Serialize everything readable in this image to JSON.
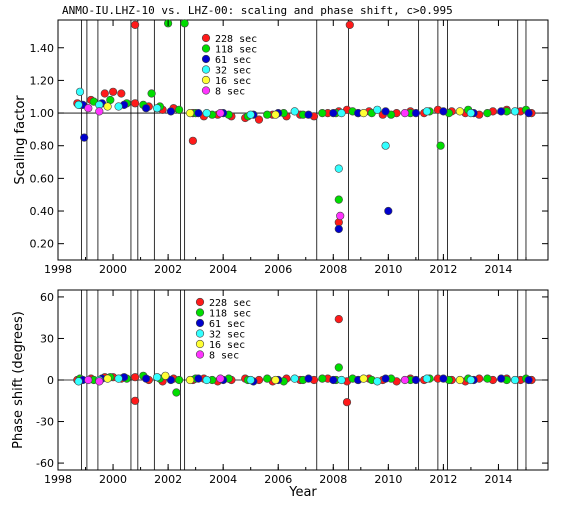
{
  "title": "ANMO-IU.LHZ-10 vs. LHZ-00: scaling and phase shift, c>0.995",
  "xlabel": "Year",
  "x_ticks": [
    "1998",
    "2000",
    "2002",
    "2004",
    "2006",
    "2008",
    "2010",
    "2012",
    "2014"
  ],
  "events": [
    1998.85,
    1999.05,
    1999.45,
    2000.65,
    2000.9,
    2001.5,
    2002.45,
    2002.6,
    2007.4,
    2008.55,
    2011.1,
    2011.8,
    2012.15,
    2014.7,
    2015.0
  ],
  "legend": [
    {
      "label": "228 sec",
      "color": "#ff1a1a"
    },
    {
      "label": "118 sec",
      "color": "#00dd00"
    },
    {
      "label": "61 sec",
      "color": "#0000cc"
    },
    {
      "label": "32 sec",
      "color": "#33ffff"
    },
    {
      "label": "16 sec",
      "color": "#ffff33"
    },
    {
      "label": "8 sec",
      "color": "#ff33ff"
    }
  ],
  "chart_data": [
    {
      "type": "scatter",
      "ylabel": "Scaling factor",
      "xlim": [
        1998,
        2015.8
      ],
      "ylim": [
        0.1,
        1.57
      ],
      "y_ticks": [
        "0.20",
        "0.40",
        "0.60",
        "0.80",
        "1.00",
        "1.20",
        "1.40"
      ],
      "y_tick_values": [
        0.2,
        0.4,
        0.6,
        0.8,
        1.0,
        1.2,
        1.4
      ],
      "baseline": 1.0,
      "series": [
        {
          "name": "228 sec",
          "color": "#ff1a1a",
          "x": [
            1998.7,
            1999.2,
            1999.7,
            2000.0,
            2000.3,
            2000.8,
            2001.3,
            2001.8,
            2002.2,
            2002.9,
            2003.3,
            2003.8,
            2004.3,
            2004.8,
            2005.3,
            2005.8,
            2006.3,
            2006.8,
            2007.3,
            2007.8,
            2008.2,
            2008.5,
            2008.9,
            2009.3,
            2009.8,
            2010.3,
            2010.8,
            2011.3,
            2011.8,
            2012.3,
            2012.8,
            2013.3,
            2013.8,
            2014.3,
            2014.8,
            2015.2,
            2000.8,
            2002.9,
            2008.6,
            2008.2
          ],
          "y": [
            1.06,
            1.08,
            1.12,
            1.13,
            1.12,
            1.06,
            1.04,
            1.02,
            1.03,
            1.0,
            0.98,
            0.99,
            0.98,
            0.97,
            0.96,
            0.99,
            0.98,
            0.99,
            0.98,
            1.0,
            1.01,
            1.02,
            1.0,
            1.01,
            0.99,
            1.0,
            1.01,
            1.0,
            1.02,
            1.01,
            1.0,
            0.99,
            1.01,
            1.02,
            1.01,
            1.0,
            1.54,
            0.83,
            1.54,
            0.33
          ]
        },
        {
          "name": "118 sec",
          "color": "#00dd00",
          "x": [
            1998.8,
            1999.3,
            1999.9,
            2000.5,
            2001.1,
            2001.7,
            2002.4,
            2003.0,
            2003.6,
            2004.2,
            2004.9,
            2005.6,
            2006.2,
            2006.9,
            2007.6,
            2008.1,
            2008.7,
            2009.4,
            2010.1,
            2010.8,
            2011.5,
            2012.2,
            2012.9,
            2013.6,
            2014.3,
            2015.0,
            2002.0,
            2002.6,
            2001.4,
            2008.2,
            2011.9
          ],
          "y": [
            1.05,
            1.07,
            1.08,
            1.06,
            1.05,
            1.04,
            1.02,
            1.0,
            0.99,
            0.99,
            0.98,
            0.99,
            1.0,
            0.99,
            1.0,
            1.0,
            1.01,
            1.0,
            0.99,
            1.0,
            1.01,
            1.0,
            1.02,
            1.0,
            1.01,
            1.02,
            1.55,
            1.55,
            1.12,
            0.47,
            0.8
          ]
        },
        {
          "name": "61 sec",
          "color": "#0000cc",
          "x": [
            1998.9,
            1999.6,
            2000.4,
            2001.2,
            2002.1,
            2003.1,
            2004.0,
            2005.1,
            2006.0,
            2007.1,
            2008.0,
            2008.9,
            2009.9,
            2011.0,
            2012.0,
            2013.1,
            2014.1,
            2015.1,
            1998.95,
            2008.2,
            2010.0
          ],
          "y": [
            1.05,
            1.06,
            1.05,
            1.03,
            1.01,
            1.0,
            1.0,
            0.99,
            1.0,
            0.99,
            1.0,
            1.0,
            1.01,
            1.0,
            1.01,
            1.0,
            1.01,
            1.0,
            0.85,
            0.29,
            0.4
          ]
        },
        {
          "name": "32 sec",
          "color": "#33ffff",
          "x": [
            1998.75,
            1999.5,
            2000.2,
            2001.6,
            2003.4,
            2005.0,
            2006.6,
            2008.3,
            2009.6,
            2011.4,
            2013.0,
            2014.6,
            1998.8,
            2008.2,
            2009.9
          ],
          "y": [
            1.05,
            1.05,
            1.04,
            1.03,
            1.0,
            0.99,
            1.01,
            1.0,
            1.02,
            1.01,
            1.0,
            1.01,
            1.13,
            0.66,
            0.8
          ]
        },
        {
          "name": "16 sec",
          "color": "#ffff33",
          "x": [
            1999.8,
            2002.8,
            2005.9,
            2009.1,
            2012.6
          ],
          "y": [
            1.04,
            1.0,
            0.99,
            1.0,
            1.01
          ]
        },
        {
          "name": "8 sec",
          "color": "#ff33ff",
          "x": [
            1999.1,
            2003.9,
            2010.6,
            1999.5,
            2008.25
          ],
          "y": [
            1.03,
            1.0,
            1.0,
            1.01,
            0.37
          ]
        }
      ]
    },
    {
      "type": "scatter",
      "ylabel": "Phase shift (degrees)",
      "xlim": [
        1998,
        2015.8
      ],
      "ylim": [
        -65,
        65
      ],
      "y_ticks": [
        "-60",
        "-30",
        "0",
        "30",
        "60"
      ],
      "y_tick_values": [
        -60,
        -30,
        0,
        30,
        60
      ],
      "baseline": 0,
      "series": [
        {
          "name": "228 sec",
          "color": "#ff1a1a",
          "x": [
            1998.7,
            1999.2,
            1999.7,
            2000.0,
            2000.3,
            2000.8,
            2001.3,
            2001.8,
            2002.2,
            2002.9,
            2003.3,
            2003.8,
            2004.3,
            2004.8,
            2005.3,
            2005.8,
            2006.3,
            2006.8,
            2007.3,
            2007.8,
            2008.5,
            2008.9,
            2009.3,
            2009.8,
            2010.3,
            2010.8,
            2011.3,
            2011.8,
            2012.3,
            2012.8,
            2013.3,
            2013.8,
            2014.3,
            2014.8,
            2015.2,
            2000.8,
            2008.2,
            2008.5
          ],
          "y": [
            0,
            1,
            2,
            2,
            1,
            2,
            0,
            -1,
            1,
            0,
            1,
            -1,
            0,
            1,
            0,
            -1,
            1,
            0,
            0,
            1,
            -1,
            0,
            1,
            0,
            -1,
            1,
            0,
            1,
            0,
            -1,
            1,
            0,
            1,
            0,
            0,
            -15,
            44,
            -16
          ]
        },
        {
          "name": "118 sec",
          "color": "#00dd00",
          "x": [
            1998.8,
            1999.3,
            1999.9,
            2000.5,
            2001.1,
            2001.7,
            2002.4,
            2003.0,
            2003.6,
            2004.2,
            2004.9,
            2005.6,
            2006.2,
            2006.9,
            2007.6,
            2008.1,
            2008.7,
            2009.4,
            2010.1,
            2010.8,
            2011.5,
            2012.2,
            2012.9,
            2013.6,
            2014.3,
            2015.0,
            2002.3,
            2008.2
          ],
          "y": [
            1,
            0,
            2,
            1,
            3,
            1,
            0,
            1,
            0,
            1,
            0,
            1,
            -1,
            0,
            1,
            0,
            1,
            0,
            1,
            0,
            1,
            0,
            1,
            1,
            0,
            1,
            -9,
            9
          ]
        },
        {
          "name": "61 sec",
          "color": "#0000cc",
          "x": [
            1998.9,
            1999.6,
            2000.4,
            2001.2,
            2002.1,
            2003.1,
            2004.0,
            2005.1,
            2006.0,
            2007.1,
            2008.0,
            2008.9,
            2009.9,
            2011.0,
            2012.0,
            2013.1,
            2014.1,
            2015.1
          ],
          "y": [
            0,
            1,
            2,
            1,
            0,
            1,
            0,
            -1,
            0,
            1,
            0,
            0,
            1,
            0,
            1,
            0,
            1,
            0
          ]
        },
        {
          "name": "32 sec",
          "color": "#33ffff",
          "x": [
            1998.75,
            1999.5,
            2000.2,
            2001.6,
            2003.4,
            2005.0,
            2006.6,
            2008.3,
            2009.6,
            2011.4,
            2013.0,
            2014.6
          ],
          "y": [
            -1,
            0,
            1,
            2,
            0,
            0,
            1,
            0,
            -1,
            1,
            0,
            0
          ]
        },
        {
          "name": "16 sec",
          "color": "#ffff33",
          "x": [
            1999.8,
            2002.8,
            2005.9,
            2009.1,
            2012.6,
            2001.9
          ],
          "y": [
            1,
            0,
            0,
            1,
            0,
            3
          ]
        },
        {
          "name": "8 sec",
          "color": "#ff33ff",
          "x": [
            1999.1,
            2003.9,
            2010.6,
            1999.5
          ],
          "y": [
            0,
            1,
            0,
            -1
          ]
        }
      ]
    }
  ]
}
